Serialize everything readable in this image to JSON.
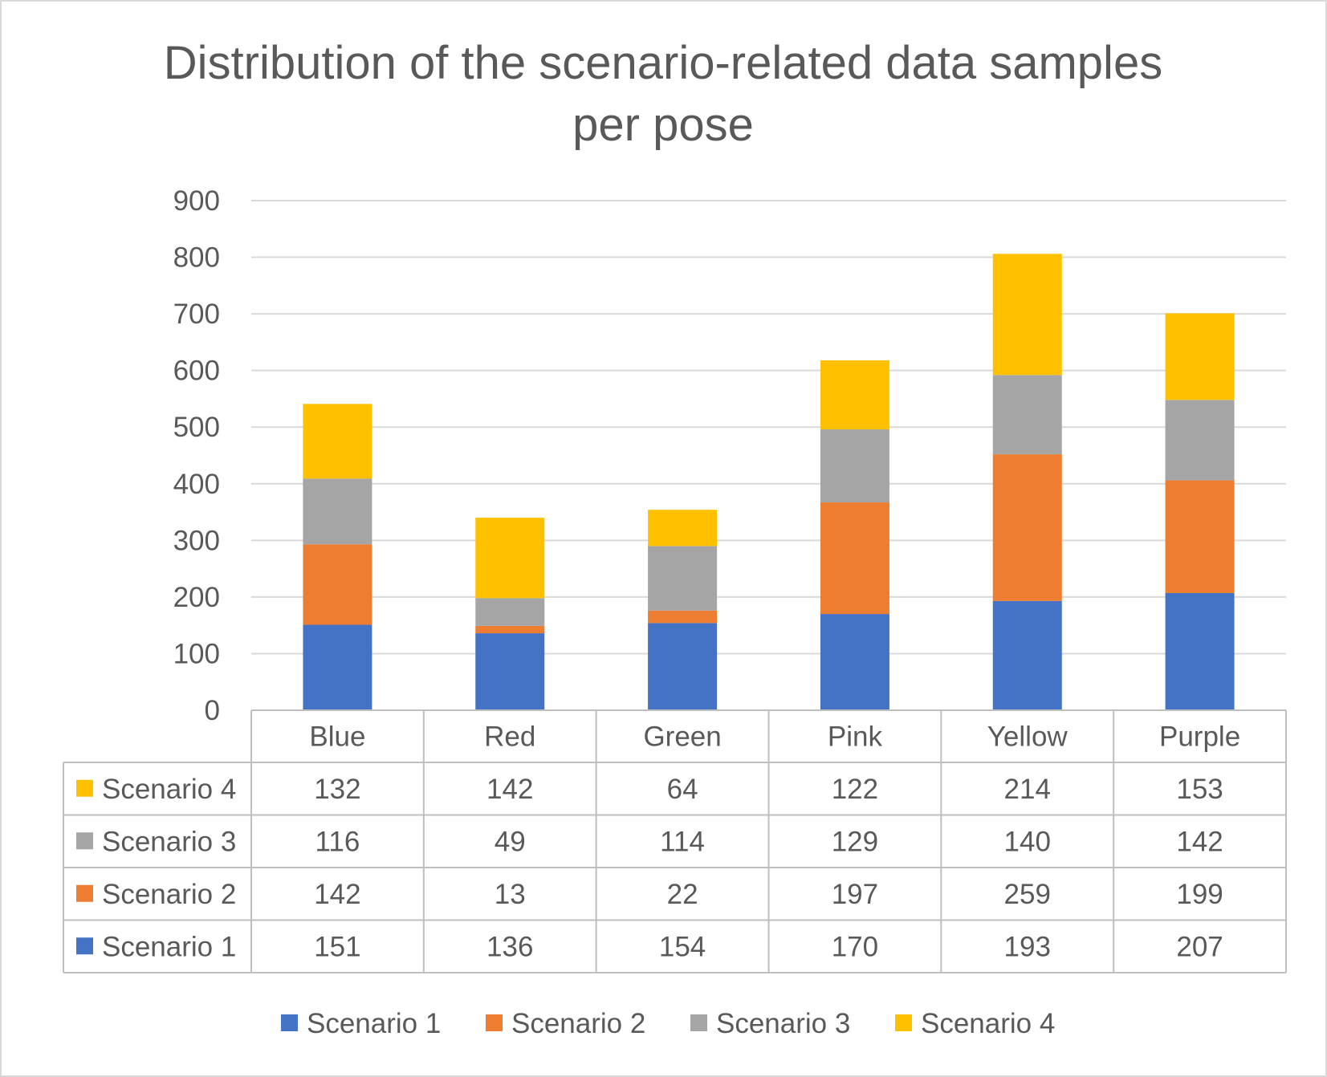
{
  "chart_data": {
    "type": "bar",
    "stacked": true,
    "title": "Distribution of the scenario-related data samples per pose",
    "title_lines": [
      "Distribution of the scenario-related data samples",
      "per pose"
    ],
    "xlabel": "",
    "ylabel": "",
    "ylim": [
      0,
      900
    ],
    "yticks": [
      0,
      100,
      200,
      300,
      400,
      500,
      600,
      700,
      800,
      900
    ],
    "grid": true,
    "legend_position": "bottom",
    "data_table": true,
    "categories": [
      "Blue",
      "Red",
      "Green",
      "Pink",
      "Yellow",
      "Purple"
    ],
    "series": [
      {
        "name": "Scenario 1",
        "color": "#4472C4",
        "values": [
          151,
          136,
          154,
          170,
          193,
          207
        ]
      },
      {
        "name": "Scenario 2",
        "color": "#ED7D31",
        "values": [
          142,
          13,
          22,
          197,
          259,
          199
        ]
      },
      {
        "name": "Scenario 3",
        "color": "#A5A5A5",
        "values": [
          116,
          49,
          114,
          129,
          140,
          142
        ]
      },
      {
        "name": "Scenario 4",
        "color": "#FFC000",
        "values": [
          132,
          142,
          64,
          122,
          214,
          153
        ]
      }
    ]
  }
}
